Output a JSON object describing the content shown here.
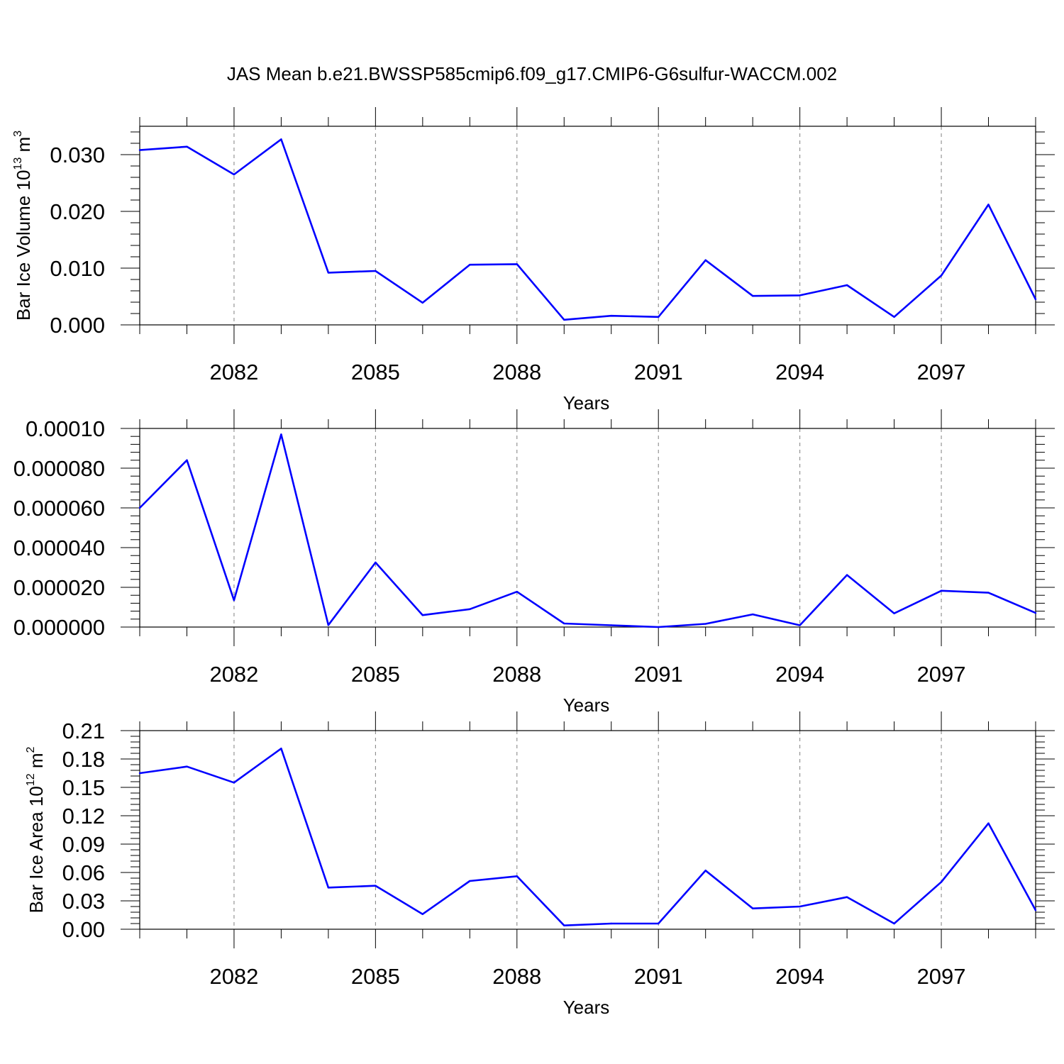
{
  "title": "JAS Mean b.e21.BWSSP585cmip6.f09_g17.CMIP6-G6sulfur-WACCM.002",
  "colors": {
    "line": "#0000ff",
    "axis": "#000000",
    "grid": "#808080"
  },
  "chart_data": [
    {
      "type": "line",
      "ylabel": "Bar Ice Volume 10",
      "ylabel_exponent": "13",
      "ylabel_unit": " m",
      "ylabel_unit_exponent": "3",
      "xlabel": "Years",
      "xlim": [
        2080,
        2099
      ],
      "ylim": [
        0,
        0.035
      ],
      "xticks": [
        2082,
        2085,
        2088,
        2091,
        2094,
        2097
      ],
      "xtick_labels": [
        "2082",
        "2085",
        "2088",
        "2091",
        "2094",
        "2097"
      ],
      "yticks": [
        0,
        0.01,
        0.02,
        0.03
      ],
      "ytick_labels": [
        "0.000",
        "0.010",
        "0.020",
        "0.030"
      ],
      "grid": "vertical dashed at labeled years",
      "series": [
        {
          "x": [
            2080,
            2081,
            2082,
            2083,
            2084,
            2085,
            2086,
            2087,
            2088,
            2089,
            2090,
            2091,
            2092,
            2093,
            2094,
            2095,
            2096,
            2097,
            2098,
            2099
          ],
          "values": [
            0.0308,
            0.0314,
            0.0265,
            0.0327,
            0.0092,
            0.0095,
            0.0039,
            0.0106,
            0.0107,
            0.0009,
            0.0016,
            0.0014,
            0.0114,
            0.0051,
            0.0052,
            0.007,
            0.0014,
            0.0087,
            0.0212,
            0.0045
          ]
        }
      ]
    },
    {
      "type": "line",
      "ylabel": "",
      "xlabel": "Years",
      "xlim": [
        2080,
        2099
      ],
      "ylim": [
        0,
        0.0001
      ],
      "xticks": [
        2082,
        2085,
        2088,
        2091,
        2094,
        2097
      ],
      "xtick_labels": [
        "2082",
        "2085",
        "2088",
        "2091",
        "2094",
        "2097"
      ],
      "yticks": [
        0,
        2e-05,
        4e-05,
        6e-05,
        8e-05,
        0.0001
      ],
      "ytick_labels": [
        "0.000000",
        "0.000020",
        "0.000040",
        "0.000060",
        "0.000080",
        "0.00010"
      ],
      "grid": "vertical dashed at labeled years",
      "series": [
        {
          "x": [
            2080,
            2081,
            2082,
            2083,
            2084,
            2085,
            2086,
            2087,
            2088,
            2089,
            2090,
            2091,
            2092,
            2093,
            2094,
            2095,
            2096,
            2097,
            2098,
            2099
          ],
          "values": [
            6e-05,
            8.4e-05,
            1.35e-05,
            9.7e-05,
            1e-06,
            3.25e-05,
            6e-06,
            9e-06,
            1.78e-05,
            1.8e-06,
            9e-07,
            0.0,
            1.6e-06,
            6.4e-06,
            9e-07,
            2.62e-05,
            6.9e-06,
            1.83e-05,
            1.73e-05,
            7.1e-06
          ]
        }
      ]
    },
    {
      "type": "line",
      "ylabel": "Bar Ice Area 10",
      "ylabel_exponent": "12",
      "ylabel_unit": " m",
      "ylabel_unit_exponent": "2",
      "xlabel": "Years",
      "xlim": [
        2080,
        2099
      ],
      "ylim": [
        0,
        0.21
      ],
      "xticks": [
        2082,
        2085,
        2088,
        2091,
        2094,
        2097
      ],
      "xtick_labels": [
        "2082",
        "2085",
        "2088",
        "2091",
        "2094",
        "2097"
      ],
      "yticks": [
        0,
        0.03,
        0.06,
        0.09,
        0.12,
        0.15,
        0.18,
        0.21
      ],
      "ytick_labels": [
        "0.00",
        "0.03",
        "0.06",
        "0.09",
        "0.12",
        "0.15",
        "0.18",
        "0.21"
      ],
      "grid": "vertical dashed at labeled years",
      "series": [
        {
          "x": [
            2080,
            2081,
            2082,
            2083,
            2084,
            2085,
            2086,
            2087,
            2088,
            2089,
            2090,
            2091,
            2092,
            2093,
            2094,
            2095,
            2096,
            2097,
            2098,
            2099
          ],
          "values": [
            0.165,
            0.172,
            0.155,
            0.191,
            0.044,
            0.046,
            0.016,
            0.051,
            0.056,
            0.004,
            0.006,
            0.006,
            0.062,
            0.022,
            0.024,
            0.034,
            0.006,
            0.05,
            0.112,
            0.02
          ]
        }
      ]
    }
  ]
}
